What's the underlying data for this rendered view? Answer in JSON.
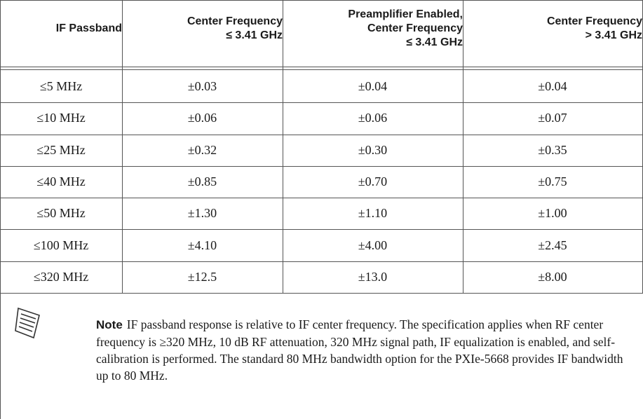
{
  "table": {
    "headers": [
      [
        "IF Passband"
      ],
      [
        "Center Frequency",
        "≤ 3.41 GHz"
      ],
      [
        "Preamplifier Enabled,",
        "Center Frequency",
        "≤ 3.41 GHz"
      ],
      [
        "Center Frequency",
        "> 3.41 GHz"
      ]
    ],
    "rows": [
      [
        "≤5 MHz",
        "±0.03",
        "±0.04",
        "±0.04"
      ],
      [
        "≤10 MHz",
        "±0.06",
        "±0.06",
        "±0.07"
      ],
      [
        "≤25 MHz",
        "±0.32",
        "±0.30",
        "±0.35"
      ],
      [
        "≤40 MHz",
        "±0.85",
        "±0.70",
        "±0.75"
      ],
      [
        "≤50 MHz",
        "±1.30",
        "±1.10",
        "±1.00"
      ],
      [
        "≤100 MHz",
        "±4.10",
        "±4.00",
        "±2.45"
      ],
      [
        "≤320 MHz",
        "±12.5",
        "±13.0",
        "±8.00"
      ]
    ]
  },
  "note": {
    "label": "Note",
    "text": "IF passband response is relative to IF center frequency. The specification applies when RF center frequency is ≥320 MHz, 10 dB RF attenuation, 320 MHz signal path, IF equalization is enabled, and self-calibration is performed. The standard 80 MHz bandwidth option for the PXIe-5668 provides IF bandwidth up to 80 MHz."
  }
}
